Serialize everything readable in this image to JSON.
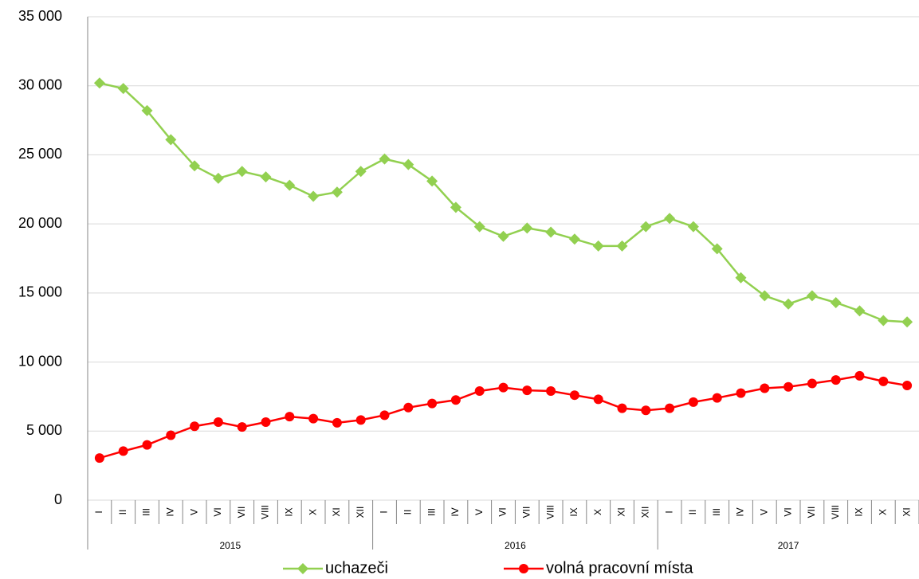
{
  "chart_data": {
    "type": "line",
    "category_groups": [
      {
        "label": "2015",
        "categories": [
          "I",
          "II",
          "III",
          "IV",
          "V",
          "VI",
          "VII",
          "VIII",
          "IX",
          "X",
          "XI",
          "XII"
        ]
      },
      {
        "label": "2016",
        "categories": [
          "I",
          "II",
          "III",
          "IV",
          "V",
          "VI",
          "VII",
          "VIII",
          "IX",
          "X",
          "XI",
          "XII"
        ]
      },
      {
        "label": "2017",
        "categories": [
          "I",
          "II",
          "III",
          "IV",
          "V",
          "VI",
          "VII",
          "VIII",
          "IX",
          "X",
          "XI"
        ]
      }
    ],
    "series": [
      {
        "name": "uchazeči",
        "color": "#92d050",
        "marker": "diamond",
        "values": [
          30200,
          29800,
          28200,
          26100,
          24200,
          23300,
          23800,
          23400,
          22800,
          22000,
          22300,
          23800,
          24700,
          24300,
          23100,
          21200,
          19800,
          19100,
          19700,
          19400,
          18900,
          18400,
          18400,
          19800,
          20400,
          19800,
          18200,
          16100,
          14800,
          14200,
          14800,
          14300,
          13700,
          13000,
          12900
        ]
      },
      {
        "name": "volná pracovní místa",
        "color": "#ff0000",
        "marker": "circle",
        "values": [
          3050,
          3550,
          4000,
          4700,
          5350,
          5650,
          5300,
          5650,
          6050,
          5900,
          5600,
          5800,
          6150,
          6700,
          7000,
          7250,
          7900,
          8150,
          7950,
          7900,
          7600,
          7300,
          6650,
          6500,
          6650,
          7100,
          7400,
          7750,
          8100,
          8200,
          8450,
          8700,
          9000,
          8600,
          8300
        ]
      }
    ],
    "ylim": [
      0,
      35000
    ],
    "yticks": [
      {
        "value": 0,
        "label": "0"
      },
      {
        "value": 5000,
        "label": "5 000"
      },
      {
        "value": 10000,
        "label": "10 000"
      },
      {
        "value": 15000,
        "label": "15 000"
      },
      {
        "value": 20000,
        "label": "20 000"
      },
      {
        "value": 25000,
        "label": "25 000"
      },
      {
        "value": 30000,
        "label": "30 000"
      },
      {
        "value": 35000,
        "label": "35 000"
      }
    ],
    "grid": true,
    "legend": "bottom"
  }
}
